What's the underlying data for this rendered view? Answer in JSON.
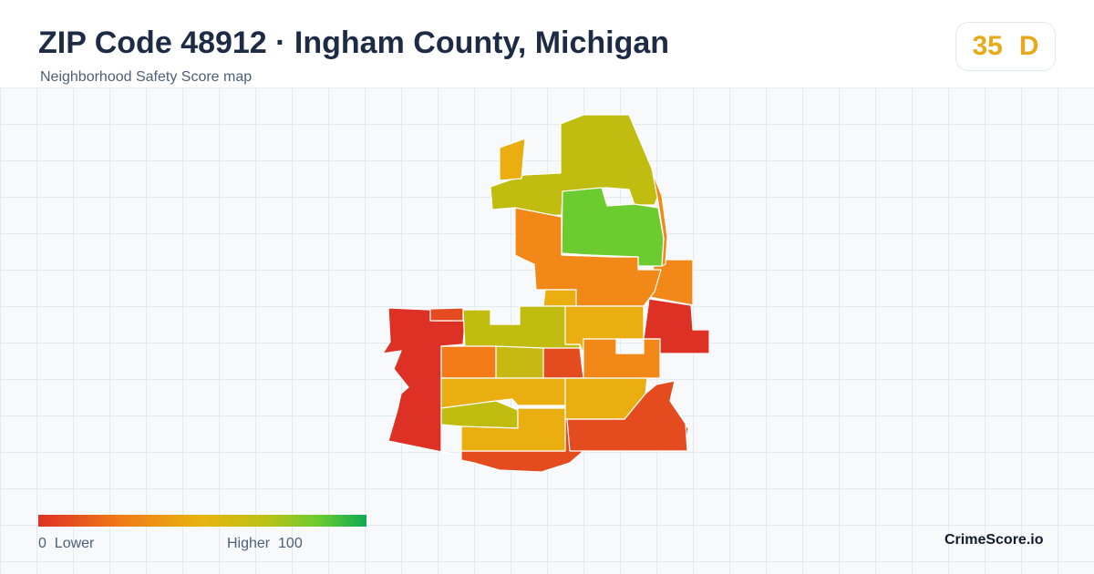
{
  "header": {
    "title": "ZIP Code 48912 · Ingham County, Michigan",
    "subtitle": "Neighborhood Safety Score map"
  },
  "score": {
    "value": "35",
    "grade": "D",
    "color": "#e8a91a"
  },
  "legend": {
    "min_value": "0",
    "min_label": "Lower",
    "max_label": "Higher",
    "max_value": "100",
    "gradient_colors": [
      "#dd3125",
      "#f07a18",
      "#e8b40f",
      "#b8c217",
      "#6ccb2f",
      "#0faa52"
    ]
  },
  "brand": {
    "name": "CrimeScore.io"
  },
  "map": {
    "region_colors": {
      "red": "#dd3125",
      "red_orange": "#e44b1f",
      "orange": "#f28818",
      "amber": "#eaae11",
      "olive": "#c0bd10",
      "green": "#6ccb2f"
    }
  }
}
